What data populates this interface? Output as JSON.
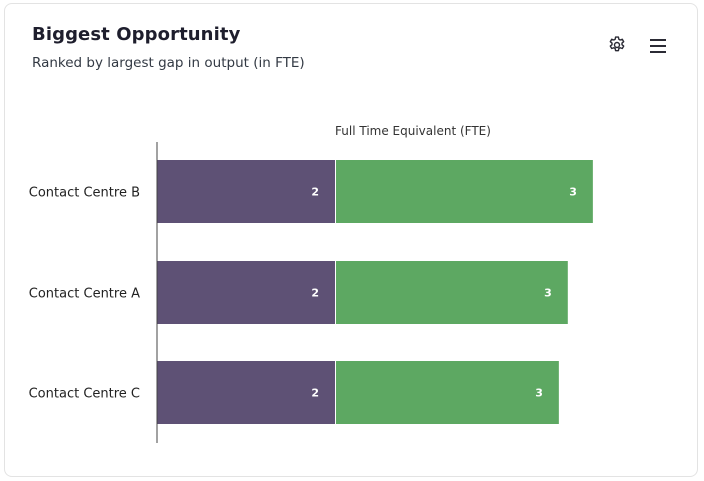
{
  "header": {
    "title": "Biggest Opportunity",
    "subtitle": "Ranked by largest gap in output (in FTE)"
  },
  "toolbar": {
    "settings_icon": "gear-icon",
    "menu_icon": "hamburger-menu-icon"
  },
  "chart_data": {
    "type": "bar",
    "orientation": "horizontal",
    "stacked": true,
    "title": "",
    "xlabel": "Full Time Equivalent (FTE)",
    "ylabel": "",
    "categories": [
      "Contact Centre B",
      "Contact Centre A",
      "Contact Centre C"
    ],
    "series": [
      {
        "values": [
          2,
          2,
          2
        ],
        "labels": [
          "2",
          "2",
          "2"
        ],
        "color": "#5e5175"
      },
      {
        "values": [
          3,
          3,
          3
        ],
        "labels": [
          "3",
          "3",
          "3"
        ],
        "color": "#5da862"
      }
    ],
    "segment_extent": [
      [
        2.0,
        2.87
      ],
      [
        2.0,
        2.59
      ],
      [
        2.0,
        2.49
      ]
    ],
    "xlim": [
      0,
      5
    ],
    "grid": false,
    "legend": "none"
  }
}
